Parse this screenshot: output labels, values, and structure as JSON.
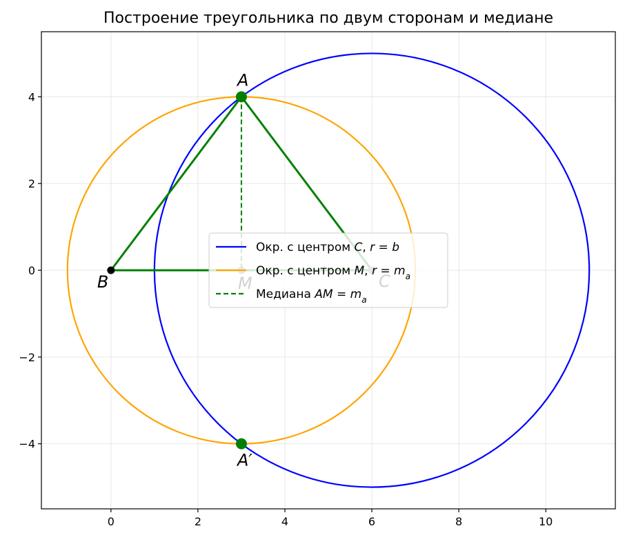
{
  "chart_data": {
    "type": "scatter",
    "title": "Построение треугольника по двум сторонам и медиане",
    "xlabel": "",
    "ylabel": "",
    "xlim": [
      -1.6,
      11.6
    ],
    "ylim": [
      -5.5,
      5.5
    ],
    "grid": true,
    "x_ticks": [
      0,
      2,
      4,
      6,
      8,
      10
    ],
    "y_ticks": [
      -4,
      -2,
      0,
      2,
      4
    ],
    "x_tick_labels": [
      "0",
      "2",
      "4",
      "6",
      "8",
      "10"
    ],
    "y_tick_labels": [
      "−4",
      "−2",
      "0",
      "2",
      "4"
    ],
    "legend_position": "center",
    "legend": [
      {
        "label": "Окр. с центром C, r = b",
        "color": "#0000ff",
        "style": "solid"
      },
      {
        "label": "Окр. с центром M, r = m_a",
        "color": "#ffa500",
        "style": "solid"
      },
      {
        "label": "Медиана AM = m_a",
        "color": "#008000",
        "style": "dashed"
      }
    ],
    "circles": [
      {
        "name": "Окр. с центром C, r = b",
        "center": [
          6,
          0
        ],
        "radius": 5,
        "color": "#0000ff"
      },
      {
        "name": "Окр. с центром M, r = m_a",
        "center": [
          3,
          0
        ],
        "radius": 4,
        "color": "#ffa500"
      }
    ],
    "triangle": {
      "vertices": [
        [
          0,
          0
        ],
        [
          3,
          4
        ],
        [
          6,
          0
        ]
      ],
      "color": "#008000"
    },
    "median": {
      "from": [
        3,
        4
      ],
      "to": [
        3,
        0
      ],
      "color": "#008000"
    },
    "points": [
      {
        "label": "A",
        "x": 3,
        "y": 4,
        "color": "#008000",
        "kind": "big"
      },
      {
        "label": "A′",
        "x": 3,
        "y": -4,
        "color": "#008000",
        "kind": "big"
      },
      {
        "label": "B",
        "x": 0,
        "y": 0,
        "color": "#000000",
        "kind": "small"
      },
      {
        "label": "M",
        "x": 3,
        "y": 0,
        "color": "#808080",
        "kind": "small"
      },
      {
        "label": "C",
        "x": 6,
        "y": 0,
        "color": "#808080",
        "kind": "small"
      }
    ]
  }
}
